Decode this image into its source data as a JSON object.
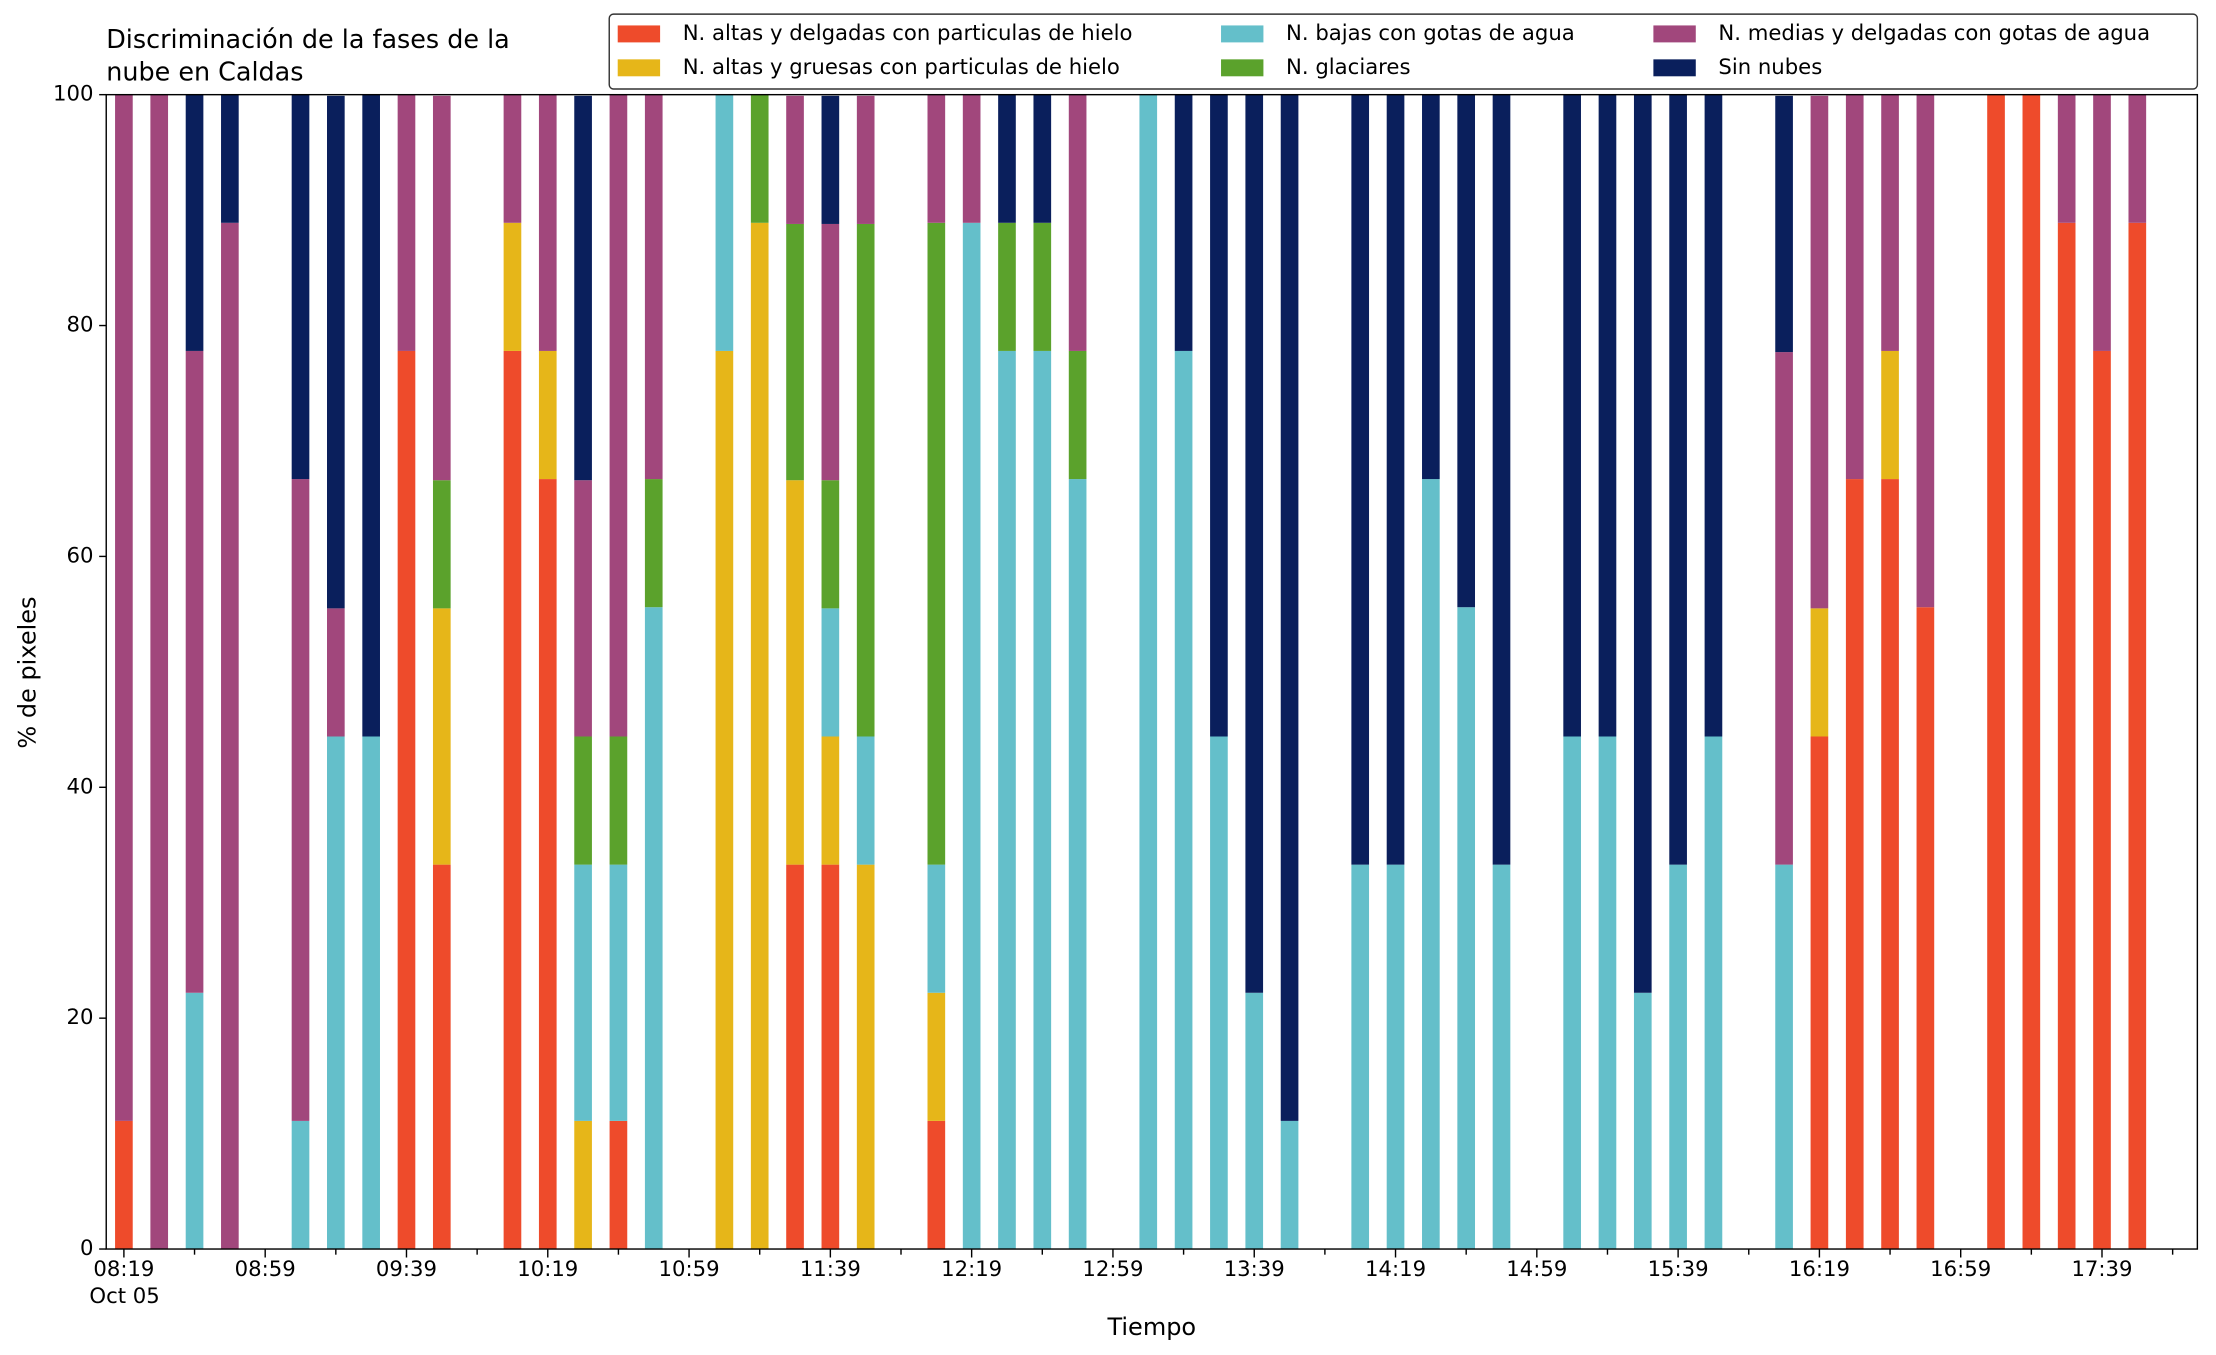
{
  "chart_data": {
    "type": "stacked_bar",
    "title": [
      "Discriminación de la fases de la",
      "nube en Caldas"
    ],
    "x_label": "Tiempo",
    "y_label": "% de pixeles",
    "x_date": "Oct 05",
    "x": [
      "08:19",
      null,
      null,
      null,
      "08:59",
      null,
      null,
      null,
      "09:39",
      null,
      null,
      null,
      "10:19",
      null,
      null,
      null,
      "10:59",
      null,
      null,
      null,
      "11:39",
      null,
      null,
      null,
      "12:19",
      null,
      null,
      null,
      "12:59",
      null,
      null,
      null,
      "13:39",
      null,
      null,
      null,
      "14:19",
      null,
      null,
      null,
      "14:59",
      null,
      null,
      null,
      "15:39",
      null,
      null,
      null,
      "16:19",
      null,
      null,
      null,
      "16:59",
      null,
      null,
      null,
      "17:39",
      null
    ],
    "ylim": [
      0,
      100
    ],
    "yticks": [
      0,
      20,
      40,
      60,
      80,
      100
    ],
    "legend": "top-right",
    "series": [
      {
        "name": "N. altas y delgadas con particulas de hielo",
        "color": "#ee4b2b",
        "values": [
          11.1,
          0,
          0,
          0,
          null,
          0,
          0,
          0,
          77.8,
          33.3,
          null,
          77.8,
          66.7,
          0,
          11.1,
          0,
          null,
          0,
          0,
          33.3,
          33.3,
          0,
          null,
          11.1,
          0,
          0,
          0,
          0,
          null,
          0,
          0,
          0,
          0,
          0,
          null,
          0,
          0,
          0,
          0,
          0,
          null,
          0,
          0,
          0,
          0,
          0,
          null,
          0,
          44.4,
          66.7,
          66.7,
          55.6,
          null,
          100,
          100,
          88.9,
          77.8,
          88.9
        ]
      },
      {
        "name": "N. altas y gruesas con particulas de hielo",
        "color": "#e6b619",
        "values": [
          0,
          0,
          0,
          0,
          null,
          0,
          0,
          0,
          0,
          22.2,
          null,
          11.1,
          11.1,
          11.1,
          0,
          0,
          null,
          77.8,
          88.9,
          33.3,
          11.1,
          33.3,
          null,
          11.1,
          0,
          0,
          0,
          0,
          null,
          0,
          0,
          0,
          0,
          0,
          null,
          0,
          0,
          0,
          0,
          0,
          null,
          0,
          0,
          0,
          0,
          0,
          null,
          0,
          11.1,
          0,
          11.1,
          0,
          null,
          0,
          0,
          0,
          0,
          0
        ]
      },
      {
        "name": "N. bajas con gotas de agua",
        "color": "#64bfca",
        "values": [
          0,
          0,
          22.2,
          0,
          null,
          11.1,
          44.4,
          44.4,
          0,
          0,
          null,
          0,
          0,
          22.2,
          22.2,
          55.6,
          null,
          22.2,
          0,
          0,
          11.1,
          11.1,
          null,
          11.1,
          88.9,
          77.8,
          77.8,
          66.7,
          null,
          100,
          77.8,
          44.4,
          22.2,
          11.1,
          null,
          33.3,
          33.3,
          66.7,
          55.6,
          33.3,
          null,
          44.4,
          44.4,
          22.2,
          33.3,
          44.4,
          null,
          33.3,
          0,
          0,
          0,
          0,
          null,
          0,
          0,
          0,
          0,
          0
        ]
      },
      {
        "name": "N. glaciares",
        "color": "#5ba22c",
        "values": [
          0,
          0,
          0,
          0,
          null,
          0,
          0,
          0,
          0,
          11.1,
          null,
          0,
          0,
          11.1,
          11.1,
          11.1,
          null,
          0,
          11.1,
          22.2,
          11.1,
          44.4,
          null,
          55.6,
          0,
          11.1,
          11.1,
          11.1,
          null,
          0,
          0,
          0,
          0,
          0,
          null,
          0,
          0,
          0,
          0,
          0,
          null,
          0,
          0,
          0,
          0,
          0,
          null,
          0,
          0,
          0,
          0,
          0,
          null,
          0,
          0,
          0,
          0,
          0
        ]
      },
      {
        "name": "N. medias y delgadas con gotas de agua",
        "color": "#a1477c",
        "values": [
          88.9,
          100,
          55.6,
          88.9,
          null,
          55.6,
          11.1,
          0,
          22.2,
          33.3,
          null,
          11.1,
          22.2,
          22.2,
          55.6,
          33.3,
          null,
          0,
          0,
          11.1,
          22.2,
          11.1,
          null,
          11.1,
          11.1,
          0,
          0,
          22.2,
          null,
          0,
          0,
          0,
          0,
          0,
          null,
          0,
          0,
          0,
          0,
          0,
          null,
          0,
          0,
          0,
          0,
          0,
          null,
          44.4,
          44.4,
          33.3,
          22.2,
          44.4,
          null,
          0,
          0,
          11.1,
          22.2,
          11.1
        ]
      },
      {
        "name": "Sin nubes",
        "color": "#0a1f5c",
        "values": [
          0,
          0,
          22.2,
          11.1,
          null,
          33.3,
          44.4,
          55.6,
          0,
          0,
          null,
          0,
          0,
          33.3,
          0,
          0,
          null,
          0,
          0,
          0,
          11.1,
          0,
          null,
          0,
          0,
          11.1,
          11.1,
          0,
          null,
          0,
          22.2,
          55.6,
          77.8,
          88.9,
          null,
          66.7,
          66.7,
          33.3,
          44.4,
          66.7,
          null,
          55.6,
          55.6,
          77.8,
          66.7,
          55.6,
          null,
          22.2,
          0,
          0,
          0,
          0,
          null,
          0,
          0,
          0,
          0,
          0
        ]
      }
    ]
  }
}
